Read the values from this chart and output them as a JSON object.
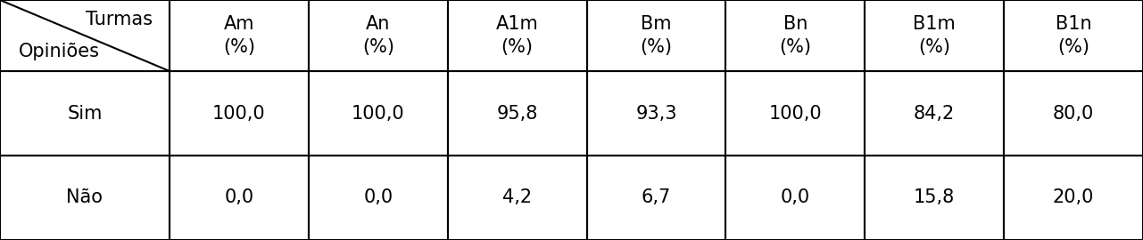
{
  "col_headers": [
    "Am\n(%)",
    "An\n(%)",
    "A1m\n(%)",
    "Bm\n(%)",
    "Bn\n(%)",
    "B1m\n(%)",
    "B1n\n(%)"
  ],
  "row_labels": [
    "Sim",
    "Não"
  ],
  "data": [
    [
      "100,0",
      "100,0",
      "95,8",
      "93,3",
      "100,0",
      "84,2",
      "80,0"
    ],
    [
      "0,0",
      "0,0",
      "4,2",
      "6,7",
      "0,0",
      "15,8",
      "20,0"
    ]
  ],
  "header_top_right": "Turmas",
  "header_bottom_left": "Opiniões",
  "bg_color": "#ffffff",
  "line_color": "#000000",
  "text_color": "#000000",
  "font_size": 15,
  "header_font_size": 15
}
